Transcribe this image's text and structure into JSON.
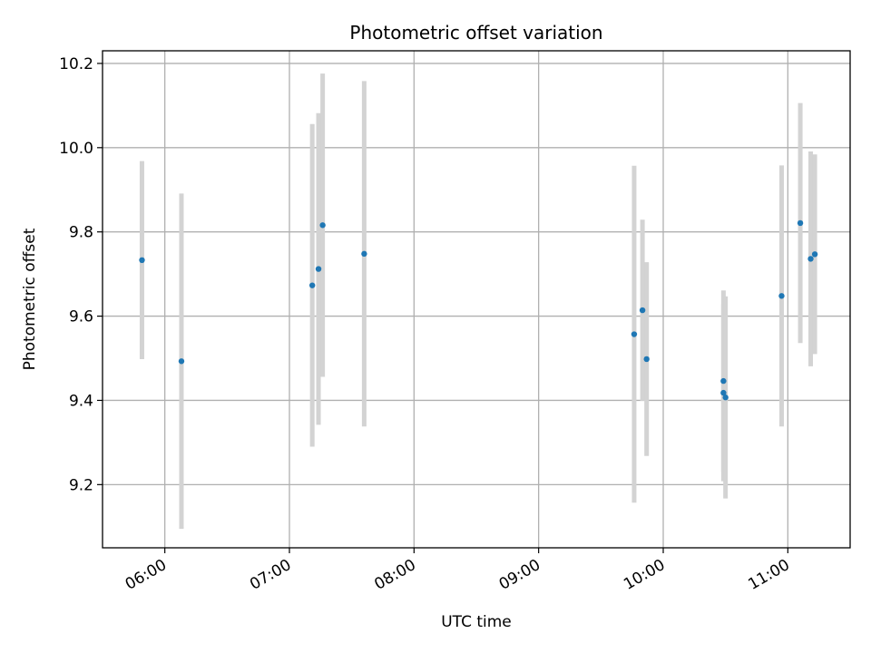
{
  "chart_data": {
    "type": "scatter",
    "title": "Photometric offset variation",
    "xlabel": "UTC time",
    "ylabel": "Photometric offset",
    "xlim": [
      "05:30",
      "11:30"
    ],
    "ylim": [
      9.05,
      10.23
    ],
    "x_ticks": [
      "06:00",
      "07:00",
      "08:00",
      "09:00",
      "10:00",
      "11:00"
    ],
    "y_ticks": [
      "9.2",
      "9.4",
      "9.6",
      "9.8",
      "10.0",
      "10.2"
    ],
    "grid": true,
    "colors": {
      "point": "#1f77b4",
      "errorbar": "#d3d3d3",
      "grid": "#b0b0b0"
    },
    "points": [
      {
        "x": "05:49",
        "y": 9.733,
        "err": 0.235
      },
      {
        "x": "06:08",
        "y": 9.493,
        "err": 0.398
      },
      {
        "x": "07:11",
        "y": 9.673,
        "err": 0.383
      },
      {
        "x": "07:14",
        "y": 9.712,
        "err": 0.37
      },
      {
        "x": "07:16",
        "y": 9.816,
        "err": 0.36
      },
      {
        "x": "07:36",
        "y": 9.748,
        "err": 0.41
      },
      {
        "x": "09:46",
        "y": 9.557,
        "err": 0.4
      },
      {
        "x": "09:50",
        "y": 9.614,
        "err": 0.215
      },
      {
        "x": "09:52",
        "y": 9.498,
        "err": 0.23
      },
      {
        "x": "10:29",
        "y": 9.418,
        "err": 0.21
      },
      {
        "x": "10:29",
        "y": 9.446,
        "err": 0.215
      },
      {
        "x": "10:30",
        "y": 9.407,
        "err": 0.24
      },
      {
        "x": "10:57",
        "y": 9.648,
        "err": 0.31
      },
      {
        "x": "11:06",
        "y": 9.821,
        "err": 0.285
      },
      {
        "x": "11:11",
        "y": 9.736,
        "err": 0.255
      },
      {
        "x": "11:13",
        "y": 9.747,
        "err": 0.237
      }
    ]
  }
}
